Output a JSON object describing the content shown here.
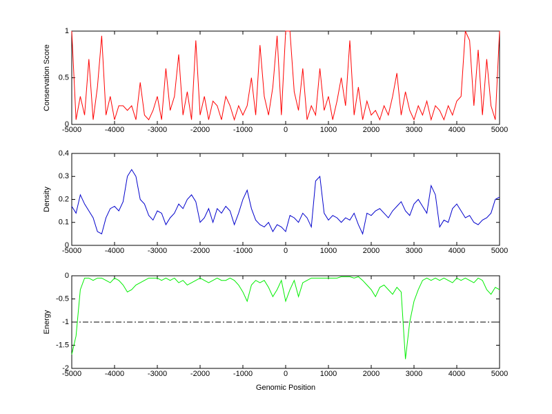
{
  "chart_data": [
    {
      "type": "line",
      "ylabel": "Conservation Score",
      "color": "#ff0000",
      "x": [
        -5000,
        -4900,
        -4800,
        -4700,
        -4600,
        -4500,
        -4400,
        -4300,
        -4200,
        -4100,
        -4000,
        -3900,
        -3800,
        -3700,
        -3600,
        -3500,
        -3400,
        -3300,
        -3200,
        -3100,
        -3000,
        -2900,
        -2800,
        -2700,
        -2600,
        -2500,
        -2400,
        -2300,
        -2200,
        -2100,
        -2000,
        -1900,
        -1800,
        -1700,
        -1600,
        -1500,
        -1400,
        -1300,
        -1200,
        -1100,
        -1000,
        -900,
        -800,
        -700,
        -600,
        -500,
        -400,
        -300,
        -200,
        -100,
        0,
        100,
        200,
        300,
        400,
        500,
        600,
        700,
        800,
        900,
        1000,
        1100,
        1200,
        1300,
        1400,
        1500,
        1600,
        1700,
        1800,
        1900,
        2000,
        2100,
        2200,
        2300,
        2400,
        2500,
        2600,
        2700,
        2800,
        2900,
        3000,
        3100,
        3200,
        3300,
        3400,
        3500,
        3600,
        3700,
        3800,
        3900,
        4000,
        4100,
        4200,
        4300,
        4400,
        4500,
        4600,
        4700,
        4800,
        4900,
        5000
      ],
      "values": [
        1,
        0.05,
        0.3,
        0.1,
        0.7,
        0.05,
        0.4,
        0.95,
        0.1,
        0.3,
        0.05,
        0.2,
        0.2,
        0.15,
        0.2,
        0.05,
        0.45,
        0.1,
        0.05,
        0.15,
        0.3,
        0.05,
        0.6,
        0.15,
        0.3,
        0.75,
        0.1,
        0.35,
        0.05,
        0.9,
        0.1,
        0.3,
        0.05,
        0.25,
        0.2,
        0.05,
        0.3,
        0.2,
        0.05,
        0.2,
        0.1,
        0.2,
        0.5,
        0.1,
        0.85,
        0.3,
        0.1,
        0.4,
        0.95,
        0.1,
        1,
        1,
        0.35,
        0.15,
        0.6,
        0.05,
        0.2,
        0.1,
        0.6,
        0.15,
        0.3,
        0.05,
        0.25,
        0.5,
        0.2,
        0.9,
        0.1,
        0.4,
        0.05,
        0.25,
        0.1,
        0.15,
        0.05,
        0.2,
        0.1,
        0.3,
        0.55,
        0.1,
        0.35,
        0.15,
        0.05,
        0.2,
        0.1,
        0.25,
        0.05,
        0.2,
        0.15,
        0.05,
        0.2,
        0.1,
        0.25,
        0.3,
        1,
        0.9,
        0.2,
        0.8,
        0.1,
        0.7,
        0.2,
        0.05,
        1
      ],
      "xlim": [
        -5000,
        5000
      ],
      "xticks": [
        -5000,
        -4000,
        -3000,
        -2000,
        -1000,
        0,
        1000,
        2000,
        3000,
        4000,
        5000
      ],
      "ylim": [
        0,
        1
      ],
      "yticks": [
        0,
        0.5,
        1
      ]
    },
    {
      "type": "line",
      "ylabel": "Density",
      "color": "#0000cc",
      "x": [
        -5000,
        -4900,
        -4800,
        -4700,
        -4600,
        -4500,
        -4400,
        -4300,
        -4200,
        -4100,
        -4000,
        -3900,
        -3800,
        -3700,
        -3600,
        -3500,
        -3400,
        -3300,
        -3200,
        -3100,
        -3000,
        -2900,
        -2800,
        -2700,
        -2600,
        -2500,
        -2400,
        -2300,
        -2200,
        -2100,
        -2000,
        -1900,
        -1800,
        -1700,
        -1600,
        -1500,
        -1400,
        -1300,
        -1200,
        -1100,
        -1000,
        -900,
        -800,
        -700,
        -600,
        -500,
        -400,
        -300,
        -200,
        -100,
        0,
        100,
        200,
        300,
        400,
        500,
        600,
        700,
        800,
        900,
        1000,
        1100,
        1200,
        1300,
        1400,
        1500,
        1600,
        1700,
        1800,
        1900,
        2000,
        2100,
        2200,
        2300,
        2400,
        2500,
        2600,
        2700,
        2800,
        2900,
        3000,
        3100,
        3200,
        3300,
        3400,
        3500,
        3600,
        3700,
        3800,
        3900,
        4000,
        4100,
        4200,
        4300,
        4400,
        4500,
        4600,
        4700,
        4800,
        4900,
        5000
      ],
      "values": [
        0.17,
        0.14,
        0.22,
        0.18,
        0.15,
        0.12,
        0.06,
        0.05,
        0.12,
        0.16,
        0.17,
        0.15,
        0.19,
        0.3,
        0.33,
        0.3,
        0.2,
        0.18,
        0.13,
        0.11,
        0.15,
        0.14,
        0.09,
        0.12,
        0.14,
        0.18,
        0.16,
        0.2,
        0.22,
        0.19,
        0.1,
        0.12,
        0.16,
        0.1,
        0.16,
        0.14,
        0.17,
        0.15,
        0.09,
        0.14,
        0.2,
        0.24,
        0.16,
        0.11,
        0.09,
        0.08,
        0.1,
        0.06,
        0.09,
        0.08,
        0.06,
        0.13,
        0.12,
        0.1,
        0.14,
        0.12,
        0.08,
        0.28,
        0.3,
        0.14,
        0.11,
        0.13,
        0.12,
        0.1,
        0.12,
        0.11,
        0.14,
        0.09,
        0.05,
        0.14,
        0.13,
        0.15,
        0.16,
        0.14,
        0.12,
        0.15,
        0.17,
        0.19,
        0.15,
        0.13,
        0.18,
        0.2,
        0.17,
        0.14,
        0.26,
        0.22,
        0.08,
        0.11,
        0.1,
        0.16,
        0.18,
        0.15,
        0.12,
        0.13,
        0.1,
        0.09,
        0.11,
        0.12,
        0.14,
        0.2,
        0.21
      ],
      "xlim": [
        -5000,
        5000
      ],
      "xticks": [
        -5000,
        -4000,
        -3000,
        -2000,
        -1000,
        0,
        1000,
        2000,
        3000,
        4000,
        5000
      ],
      "ylim": [
        0,
        0.4
      ],
      "yticks": [
        0,
        0.1,
        0.2,
        0.3,
        0.4
      ]
    },
    {
      "type": "line",
      "ylabel": "Energy",
      "xlabel": "Genomic Position",
      "color": "#00ee00",
      "x": [
        -5000,
        -4900,
        -4800,
        -4700,
        -4600,
        -4500,
        -4400,
        -4300,
        -4200,
        -4100,
        -4000,
        -3900,
        -3800,
        -3700,
        -3600,
        -3500,
        -3400,
        -3300,
        -3200,
        -3100,
        -3000,
        -2900,
        -2800,
        -2700,
        -2600,
        -2500,
        -2400,
        -2300,
        -2200,
        -2100,
        -2000,
        -1900,
        -1800,
        -1700,
        -1600,
        -1500,
        -1400,
        -1300,
        -1200,
        -1100,
        -1000,
        -900,
        -800,
        -700,
        -600,
        -500,
        -400,
        -300,
        -200,
        -100,
        0,
        100,
        200,
        300,
        400,
        500,
        600,
        700,
        800,
        900,
        1000,
        1100,
        1200,
        1300,
        1400,
        1500,
        1600,
        1700,
        1800,
        1900,
        2000,
        2100,
        2200,
        2300,
        2400,
        2500,
        2600,
        2700,
        2800,
        2900,
        3000,
        3100,
        3200,
        3300,
        3400,
        3500,
        3600,
        3700,
        3800,
        3900,
        4000,
        4100,
        4200,
        4300,
        4400,
        4500,
        4600,
        4700,
        4800,
        4900,
        5000
      ],
      "values": [
        -1.7,
        -1.3,
        -0.3,
        -0.05,
        -0.05,
        -0.1,
        -0.05,
        -0.05,
        -0.1,
        -0.15,
        -0.05,
        -0.1,
        -0.2,
        -0.35,
        -0.3,
        -0.2,
        -0.15,
        -0.1,
        -0.05,
        -0.05,
        -0.05,
        -0.1,
        -0.05,
        -0.1,
        -0.05,
        -0.15,
        -0.1,
        -0.2,
        -0.15,
        -0.1,
        -0.05,
        -0.1,
        -0.15,
        -0.1,
        -0.05,
        -0.1,
        -0.1,
        -0.05,
        -0.1,
        -0.2,
        -0.35,
        -0.55,
        -0.2,
        -0.1,
        -0.15,
        -0.1,
        -0.25,
        -0.45,
        -0.3,
        -0.1,
        -0.55,
        -0.3,
        -0.1,
        -0.45,
        -0.15,
        -0.1,
        -0.05,
        -0.05,
        -0.05,
        -0.05,
        -0.05,
        -0.05,
        -0.05,
        -0.02,
        -0.02,
        -0.02,
        -0.05,
        -0.02,
        -0.1,
        -0.2,
        -0.3,
        -0.45,
        -0.25,
        -0.2,
        -0.3,
        -0.4,
        -0.25,
        -0.35,
        -1.8,
        -1.0,
        -0.55,
        -0.3,
        -0.1,
        -0.05,
        -0.1,
        -0.05,
        -0.1,
        -0.05,
        -0.1,
        -0.15,
        -0.05,
        -0.1,
        -0.05,
        -0.1,
        -0.15,
        -0.05,
        -0.1,
        -0.3,
        -0.4,
        -0.25,
        -0.3
      ],
      "reference_line": {
        "y": -1,
        "style": "dashdot",
        "color": "#000000"
      },
      "xlim": [
        -5000,
        5000
      ],
      "xticks": [
        -5000,
        -4000,
        -3000,
        -2000,
        -1000,
        0,
        1000,
        2000,
        3000,
        4000,
        5000
      ],
      "ylim": [
        -2,
        0
      ],
      "yticks": [
        -2,
        -1.5,
        -1,
        -0.5,
        0
      ]
    }
  ]
}
